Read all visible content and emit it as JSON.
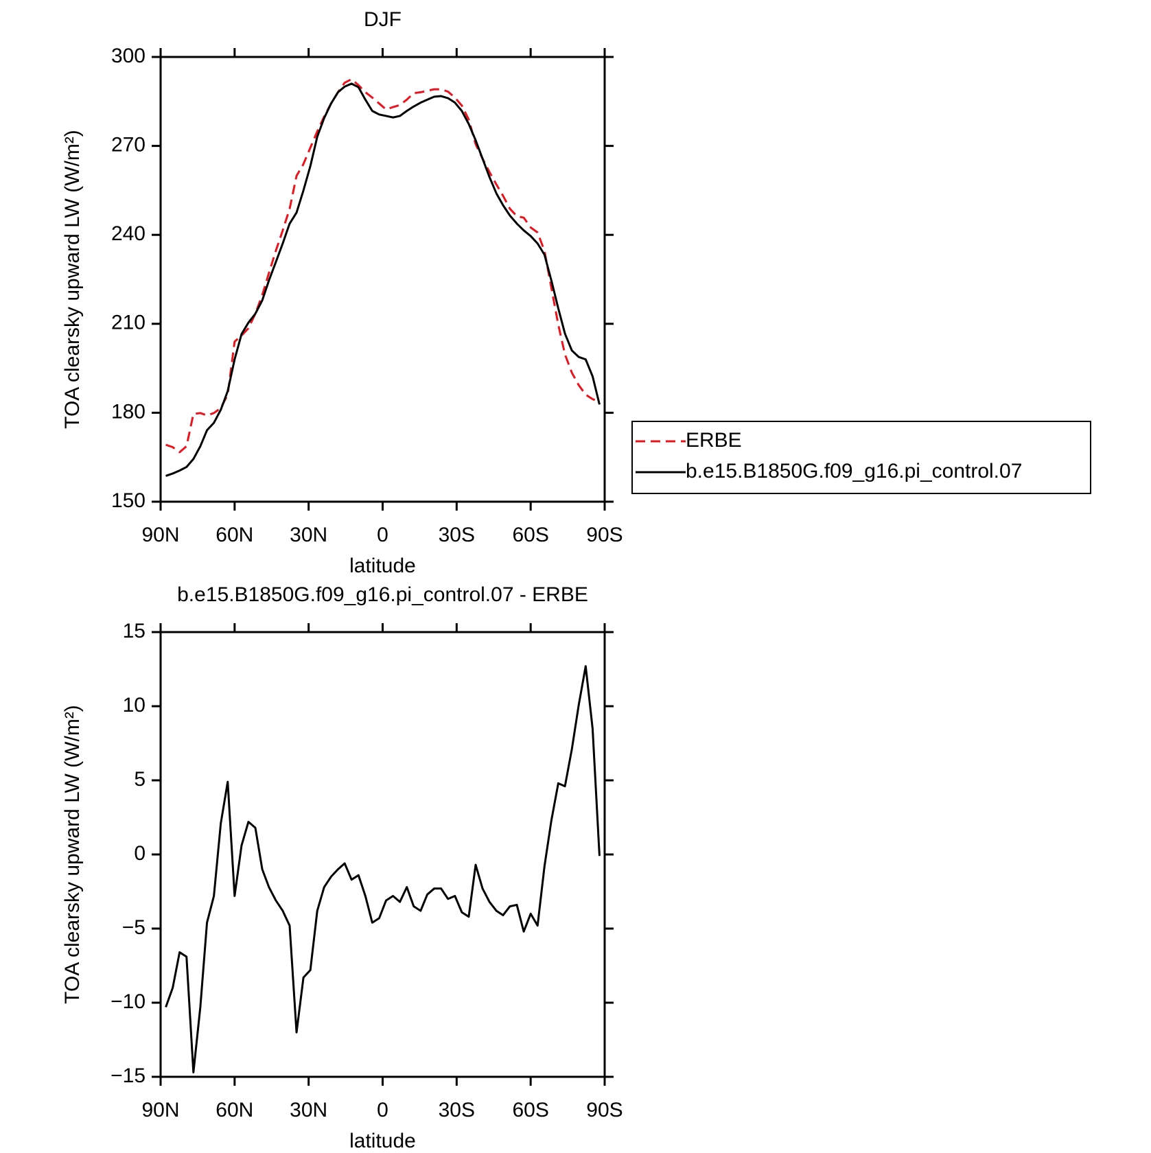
{
  "chart_data": [
    {
      "type": "line",
      "title": "DJF",
      "xlabel": "latitude",
      "ylabel": "TOA clearsky upward LW (W/m²)",
      "legend": "right",
      "xlim": [
        90,
        -90
      ],
      "xticks": [
        {
          "value": 90,
          "label": "90N"
        },
        {
          "value": 60,
          "label": "60N"
        },
        {
          "value": 30,
          "label": "30N"
        },
        0,
        {
          "value": -30,
          "label": "30S"
        },
        {
          "value": -60,
          "label": "60S"
        },
        {
          "value": -90,
          "label": "90S"
        }
      ],
      "ylim": [
        150,
        300
      ],
      "yticks": [
        150,
        180,
        210,
        240,
        270,
        300
      ],
      "x": [
        87.9,
        85.1,
        82.3,
        79.5,
        76.7,
        73.9,
        71.2,
        68.4,
        65.6,
        62.8,
        60.0,
        57.2,
        54.4,
        51.6,
        48.8,
        46.1,
        43.3,
        40.5,
        37.7,
        34.9,
        32.1,
        29.3,
        26.5,
        23.7,
        20.9,
        18.1,
        15.4,
        12.6,
        9.8,
        7.0,
        4.2,
        1.4,
        -1.4,
        -4.2,
        -7.0,
        -9.8,
        -12.6,
        -15.4,
        -18.1,
        -20.9,
        -23.7,
        -26.5,
        -29.3,
        -32.1,
        -34.9,
        -37.7,
        -40.5,
        -43.3,
        -46.1,
        -48.8,
        -51.6,
        -54.4,
        -57.2,
        -60.0,
        -62.8,
        -65.6,
        -68.4,
        -71.2,
        -73.9,
        -76.7,
        -79.5,
        -82.3,
        -85.1,
        -87.9
      ],
      "series": [
        {
          "name": "ERBE",
          "color": "#e8141e",
          "linestyle": "dashed",
          "values": [
            169.2,
            168.4,
            166.7,
            168.7,
            179.6,
            179.9,
            179.1,
            179.9,
            181.6,
            186.1,
            204.0,
            206.0,
            208.5,
            213.4,
            219.7,
            227.1,
            234.6,
            241.5,
            248.8,
            259.9,
            263.9,
            269.4,
            274.9,
            279.9,
            284.3,
            288.1,
            291.3,
            292.5,
            290.5,
            288.1,
            286.3,
            284.3,
            282.3,
            283.1,
            283.8,
            285.6,
            287.8,
            288.1,
            288.6,
            289.1,
            289.1,
            288.3,
            286.3,
            283.6,
            278.9,
            270.6,
            265.7,
            261.2,
            257.0,
            253.2,
            248.8,
            246.3,
            245.8,
            242.5,
            240.8,
            234.6,
            222.1,
            209.7,
            199.7,
            193.5,
            189.3,
            186.1,
            184.6,
            183.6
          ]
        },
        {
          "name": "b.e15.B1850G.f09_g16.pi_control.07",
          "color": "#000000",
          "linestyle": "solid",
          "values": [
            158.7,
            159.5,
            160.5,
            161.7,
            164.4,
            168.7,
            174.1,
            176.6,
            181.0,
            187.3,
            198.0,
            206.5,
            210.4,
            213.4,
            217.9,
            224.6,
            230.8,
            237.1,
            243.8,
            247.5,
            255.0,
            263.2,
            273.1,
            279.4,
            284.3,
            288.1,
            290.0,
            291.0,
            289.8,
            285.6,
            281.8,
            280.6,
            280.1,
            279.6,
            280.1,
            281.8,
            283.3,
            284.6,
            285.6,
            286.6,
            286.8,
            286.1,
            284.6,
            281.8,
            277.4,
            271.9,
            265.7,
            259.5,
            254.0,
            250.0,
            246.5,
            243.8,
            241.5,
            239.6,
            237.1,
            233.3,
            224.6,
            215.2,
            206.7,
            201.0,
            198.8,
            198.0,
            192.3,
            182.8
          ]
        }
      ]
    },
    {
      "type": "line",
      "title": "b.e15.B1850G.f09_g16.pi_control.07 - ERBE",
      "xlabel": "latitude",
      "ylabel": "TOA clearsky upward LW (W/m²)",
      "xlim": [
        90,
        -90
      ],
      "xticks": [
        {
          "value": 90,
          "label": "90N"
        },
        {
          "value": 60,
          "label": "60N"
        },
        {
          "value": 30,
          "label": "30N"
        },
        0,
        {
          "value": -30,
          "label": "30S"
        },
        {
          "value": -60,
          "label": "60S"
        },
        {
          "value": -90,
          "label": "90S"
        }
      ],
      "ylim": [
        -15,
        15
      ],
      "yticks": [
        {
          "value": -15,
          "label": "−15"
        },
        {
          "value": -10,
          "label": "−10"
        },
        {
          "value": -5,
          "label": "−5"
        },
        0,
        5,
        10,
        15
      ],
      "x": [
        87.9,
        85.1,
        82.3,
        79.5,
        76.7,
        73.9,
        71.2,
        68.4,
        65.6,
        62.8,
        60.0,
        57.2,
        54.4,
        51.6,
        48.8,
        46.1,
        43.3,
        40.5,
        37.7,
        34.9,
        32.1,
        29.3,
        26.5,
        23.7,
        20.9,
        18.1,
        15.4,
        12.6,
        9.8,
        7.0,
        4.2,
        1.4,
        -1.4,
        -4.2,
        -7.0,
        -9.8,
        -12.6,
        -15.4,
        -18.1,
        -20.9,
        -23.7,
        -26.5,
        -29.3,
        -32.1,
        -34.9,
        -37.7,
        -40.5,
        -43.3,
        -46.1,
        -48.8,
        -51.6,
        -54.4,
        -57.2,
        -60.0,
        -62.8,
        -65.6,
        -68.4,
        -71.2,
        -73.9,
        -76.7,
        -79.5,
        -82.3,
        -85.1,
        -87.9
      ],
      "series": [
        {
          "color": "#000000",
          "linestyle": "solid",
          "values": [
            -10.3,
            -9.0,
            -6.6,
            -6.9,
            -14.7,
            -10.3,
            -4.6,
            -2.8,
            2.1,
            4.9,
            -2.8,
            0.6,
            2.2,
            1.8,
            -1.0,
            -2.2,
            -3.1,
            -3.8,
            -4.8,
            -12.0,
            -8.3,
            -7.8,
            -3.8,
            -2.2,
            -1.5,
            -1.0,
            -0.6,
            -1.7,
            -1.4,
            -2.8,
            -4.6,
            -4.3,
            -3.1,
            -2.8,
            -3.2,
            -2.2,
            -3.5,
            -3.8,
            -2.7,
            -2.3,
            -2.3,
            -3.0,
            -2.8,
            -3.9,
            -4.2,
            -0.7,
            -2.3,
            -3.2,
            -3.8,
            -4.1,
            -3.5,
            -3.4,
            -5.2,
            -4.0,
            -4.8,
            -0.8,
            2.3,
            4.8,
            4.6,
            7.1,
            10.1,
            12.7,
            8.5,
            -0.1
          ]
        }
      ]
    }
  ]
}
